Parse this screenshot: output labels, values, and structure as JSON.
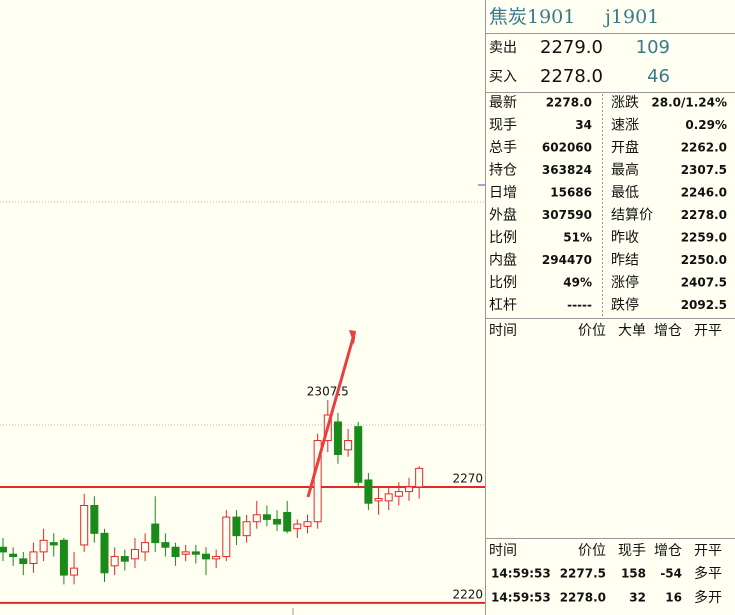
{
  "chart_data": {
    "type": "candlestick",
    "ylim": [
      2214.8,
      2479.9
    ],
    "yticks": [
      2220,
      2270
    ],
    "high_label": 2307.5,
    "up_color": "#e8262a",
    "down_color": "#1a8a1a",
    "open": [
      2244,
      2241,
      2239,
      2237,
      2242,
      2246,
      2247,
      2232,
      2245,
      2262,
      2250,
      2236,
      2240,
      2239,
      2242,
      2254,
      2246,
      2244,
      2241,
      2242,
      2241,
      2239,
      2240,
      2257,
      2249,
      2255,
      2258,
      2256,
      2259,
      2252,
      2253,
      2255,
      2290,
      2298,
      2286,
      2296,
      2273,
      2264,
      2264,
      2266,
      2268,
      2270
    ],
    "high": [
      2248,
      2244,
      2242,
      2246,
      2252,
      2250,
      2248,
      2242,
      2267,
      2266,
      2252,
      2244,
      2243,
      2248,
      2250,
      2266,
      2250,
      2246,
      2245,
      2245,
      2244,
      2243,
      2260,
      2260,
      2258,
      2264,
      2262,
      2260,
      2264,
      2256,
      2258,
      2293,
      2307.5,
      2302,
      2295,
      2298,
      2276,
      2270,
      2270,
      2272,
      2274,
      2279
    ],
    "low": [
      2238,
      2236,
      2232,
      2233,
      2238,
      2240,
      2228,
      2228,
      2242,
      2246,
      2229,
      2232,
      2234,
      2235,
      2238,
      2242,
      2240,
      2236,
      2238,
      2237,
      2232,
      2235,
      2238,
      2245,
      2246,
      2252,
      2253,
      2251,
      2250,
      2248,
      2250,
      2252,
      2285,
      2280,
      2283,
      2270,
      2260,
      2258,
      2260,
      2262,
      2264,
      2265
    ],
    "close": [
      2242,
      2240,
      2237,
      2242,
      2247,
      2245,
      2232,
      2235,
      2262,
      2250,
      2233,
      2240,
      2238,
      2243,
      2246,
      2246,
      2244,
      2240,
      2242,
      2241,
      2239,
      2240,
      2257,
      2249,
      2255,
      2258,
      2256,
      2254,
      2251,
      2254,
      2255,
      2290,
      2301,
      2284,
      2290,
      2272,
      2263,
      2265,
      2267,
      2268,
      2270,
      2278
    ]
  },
  "quote": {
    "name": "焦炭1901",
    "code": "j1901",
    "ask": {
      "label": "卖出",
      "price": "2279.0",
      "volume": "109"
    },
    "bid": {
      "label": "买入",
      "price": "2278.0",
      "volume": "46"
    },
    "rows": [
      {
        "label": "最新",
        "value": "2278.0",
        "color": "#e8262a",
        "label2": "涨跌",
        "value2": "28.0/1.24%",
        "color2": "#e8262a"
      },
      {
        "label": "现手",
        "value": "34",
        "color": "#3a7a8a",
        "label2": "速涨",
        "value2": "0.29%",
        "color2": "#e8262a"
      },
      {
        "label": "总手",
        "value": "602060",
        "color": "#3a7a8a",
        "label2": "开盘",
        "value2": "2262.0",
        "color2": "#e8262a"
      },
      {
        "label": "持仓",
        "value": "363824",
        "color": "#3a7a8a",
        "label2": "最高",
        "value2": "2307.5",
        "color2": "#e8262a"
      },
      {
        "label": "日增",
        "value": "15686",
        "color": "#3a7a8a",
        "label2": "最低",
        "value2": "2246.0",
        "color2": "#e8262a"
      },
      {
        "label": "外盘",
        "value": "307590",
        "color": "#3a7a8a",
        "label2": "结算价",
        "value2": "2278.0",
        "color2": "#e8262a"
      },
      {
        "label": "比例",
        "value": "51%",
        "color": "#3a7a8a",
        "label2": "昨收",
        "value2": "2259.0",
        "color2": "#000000"
      },
      {
        "label": "内盘",
        "value": "294470",
        "color": "#3a7a8a",
        "label2": "昨结",
        "value2": "2250.0",
        "color2": "#000000"
      },
      {
        "label": "比例",
        "value": "49%",
        "color": "#3a7a8a",
        "label2": "涨停",
        "value2": "2407.5",
        "color2": "#e8262a"
      },
      {
        "label": "杠杆",
        "value": "-----",
        "color": "#3a7a8a",
        "label2": "跌停",
        "value2": "2092.5",
        "color2": "#1a8a1a"
      }
    ],
    "ticks_header": [
      "时间",
      "价位",
      "大单",
      "增仓",
      "开平"
    ],
    "trades_header": [
      "时间",
      "价位",
      "现手",
      "增仓",
      "开平"
    ],
    "trades": [
      {
        "time": "14:59:53",
        "price": "2277.5",
        "volume": "158",
        "volume_color": "#1a8a1a",
        "change": "-54",
        "type": "多平"
      },
      {
        "time": "14:59:53",
        "price": "2278.0",
        "volume": "32",
        "volume_color": "#e8262a",
        "change": "16",
        "type": "多开"
      }
    ]
  }
}
